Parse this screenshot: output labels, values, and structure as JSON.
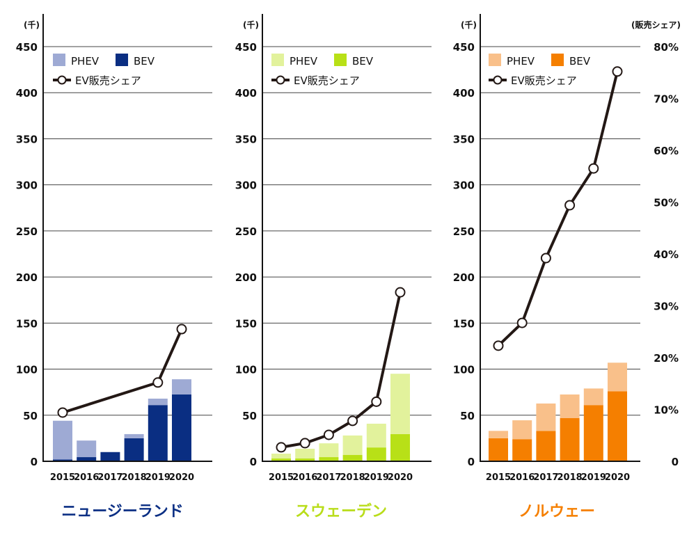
{
  "chart_data": [
    {
      "type": "bar",
      "title": "ニュージーランド",
      "title_color": "#0b2f84",
      "ylabel": "(千)",
      "ylim": [
        0,
        450
      ],
      "yticks": [
        0,
        50,
        100,
        150,
        200,
        250,
        300,
        350,
        400,
        450
      ],
      "categories": [
        "2015",
        "2016",
        "2017",
        "2018",
        "2019",
        "2020"
      ],
      "stacked": true,
      "grid": true,
      "legend_placement": "top-left",
      "series": [
        {
          "name": "BEV",
          "color": "#0a2e82",
          "values": [
            2,
            4.5,
            10,
            25,
            61,
            72.5
          ]
        },
        {
          "name": "PHEV",
          "color": "#9eaad4",
          "values": [
            42,
            18,
            0,
            4.5,
            7,
            16.5
          ]
        }
      ],
      "line_series": {
        "name": "EV販売シェア",
        "axis": "right",
        "values": [
          9.4,
          null,
          null,
          null,
          15.2,
          25.5
        ]
      }
    },
    {
      "type": "bar",
      "title": "スウェーデン",
      "title_color": "#b9dd1a",
      "ylabel": "(千)",
      "ylim": [
        0,
        450
      ],
      "yticks": [
        0,
        50,
        100,
        150,
        200,
        250,
        300,
        350,
        400,
        450
      ],
      "categories": [
        "2015",
        "2016",
        "2017",
        "2018",
        "2019",
        "2020"
      ],
      "stacked": true,
      "grid": true,
      "legend_placement": "top-left",
      "series": [
        {
          "name": "BEV",
          "color": "#b8e017",
          "values": [
            3,
            3,
            4.5,
            7,
            15,
            29.5
          ]
        },
        {
          "name": "PHEV",
          "color": "#e2f29c",
          "values": [
            5.3,
            10.6,
            15,
            21,
            25.8,
            65.5
          ]
        }
      ],
      "line_series": {
        "name": "EV販売シェア",
        "axis": "right",
        "values": [
          2.7,
          3.5,
          5.1,
          7.8,
          11.5,
          32.6
        ]
      }
    },
    {
      "type": "bar",
      "title": "ノルウェー",
      "title_color": "#f57f00",
      "ylabel": "(千)",
      "y2label": "(販売シェア)",
      "ylim": [
        0,
        450
      ],
      "y2lim": [
        0,
        80
      ],
      "yticks": [
        0,
        50,
        100,
        150,
        200,
        250,
        300,
        350,
        400,
        450
      ],
      "y2ticks": [
        "0",
        "10%",
        "20%",
        "30%",
        "40%",
        "50%",
        "60%",
        "70%",
        "80%"
      ],
      "categories": [
        "2015",
        "2016",
        "2017",
        "2018",
        "2019",
        "2020"
      ],
      "stacked": true,
      "grid": true,
      "legend_placement": "top-left",
      "series": [
        {
          "name": "BEV",
          "color": "#f57f00",
          "values": [
            25,
            24,
            33,
            47,
            61,
            76
          ]
        },
        {
          "name": "PHEV",
          "color": "#f9c08a",
          "values": [
            8,
            20.5,
            29.7,
            25.5,
            18,
            31
          ]
        }
      ],
      "line_series": {
        "name": "EV販売シェア",
        "axis": "right",
        "values": [
          22.3,
          26.7,
          39.2,
          49.4,
          56.5,
          75.2
        ]
      }
    }
  ]
}
